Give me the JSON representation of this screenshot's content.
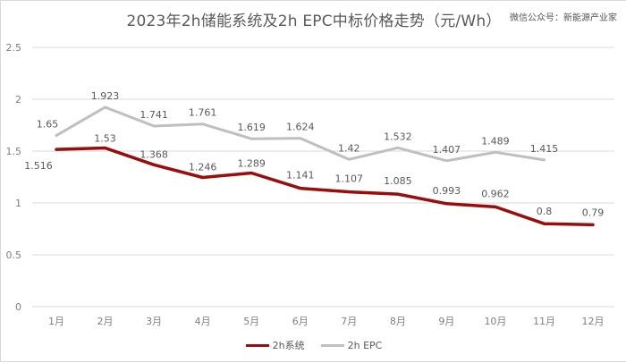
{
  "title": "2023年2h储能系统及2h  EPC中标价格走势（元/Wh）",
  "watermark": "微信公众号：新能源产业家",
  "legend": [
    {
      "label": "2h系统",
      "color": "#9b0c0c"
    },
    {
      "label": "2h EPC",
      "color": "#bfbfbf"
    }
  ],
  "y_ticks": [
    "0",
    "0.5",
    "1",
    "1.5",
    "2",
    "2.5"
  ],
  "x_ticks": [
    "1月",
    "2月",
    "3月",
    "4月",
    "5月",
    "6月",
    "7月",
    "8月",
    "9月",
    "10月",
    "11月",
    "12月"
  ],
  "chart_data": {
    "type": "line",
    "title": "2023年2h储能系统及2h  EPC中标价格走势（元/Wh）",
    "xlabel": "",
    "ylabel": "",
    "ylim": [
      0,
      2.5
    ],
    "grid": true,
    "legend_position": "bottom",
    "categories": [
      "1月",
      "2月",
      "3月",
      "4月",
      "5月",
      "6月",
      "7月",
      "8月",
      "9月",
      "10月",
      "11月",
      "12月"
    ],
    "series": [
      {
        "name": "2h系统",
        "color": "#9b0c0c",
        "values": [
          1.516,
          1.53,
          1.368,
          1.246,
          1.289,
          1.141,
          1.107,
          1.085,
          0.993,
          0.962,
          0.8,
          0.79
        ]
      },
      {
        "name": "2h EPC",
        "color": "#bfbfbf",
        "values": [
          1.65,
          1.923,
          1.741,
          1.761,
          1.619,
          1.624,
          1.42,
          1.532,
          1.407,
          1.489,
          1.415,
          null
        ]
      }
    ]
  }
}
